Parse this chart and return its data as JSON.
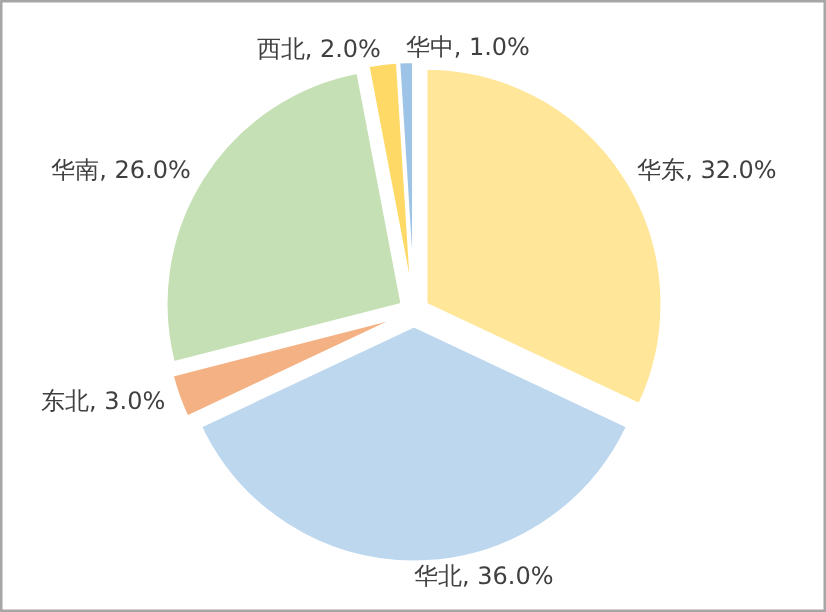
{
  "chart_data": {
    "type": "pie",
    "categories": [
      "华东",
      "华北",
      "东北",
      "华南",
      "西北",
      "华中"
    ],
    "values": [
      32.0,
      36.0,
      3.0,
      26.0,
      2.0,
      1.0
    ],
    "colors": [
      "#ffe699",
      "#bdd7ee",
      "#f4b183",
      "#c5e0b4",
      "#ffd966",
      "#9dc3e6"
    ],
    "value_labels": [
      "32.0%",
      "36.0%",
      "3.0%",
      "26.0%",
      "2.0%",
      "1.0%"
    ]
  }
}
